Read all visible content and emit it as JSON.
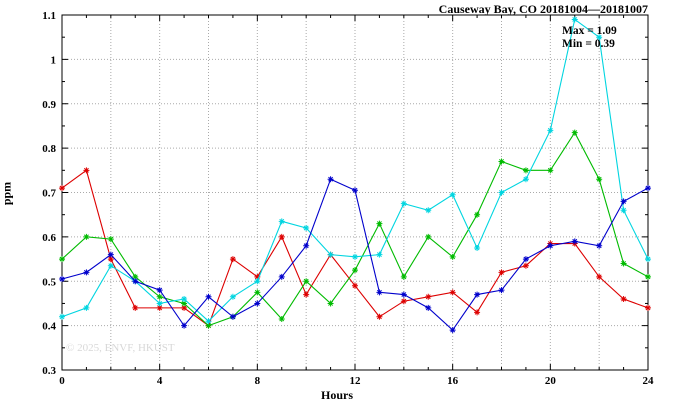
{
  "title": "Causeway Bay, CO 20181004—20181007",
  "annotation": {
    "max_label": "Max = 1.09",
    "min_label": "Min = 0.39"
  },
  "watermark": "© 2025, ENVF, HKUST",
  "axes": {
    "xlabel": "Hours",
    "ylabel": "ppm"
  },
  "colors": {
    "border": "#000000",
    "grid": "#aaaaaa",
    "background": "#ffffff"
  },
  "chart_data": {
    "type": "line",
    "title": "Causeway Bay, CO 20181004—20181007",
    "xlabel": "Hours",
    "ylabel": "ppm",
    "xlim": [
      0,
      24
    ],
    "ylim": [
      0.3,
      1.1
    ],
    "xticks": [
      0,
      4,
      8,
      12,
      16,
      20,
      24
    ],
    "yticks": [
      0.3,
      0.4,
      0.5,
      0.6,
      0.7,
      0.8,
      0.9,
      1.0,
      1.1
    ],
    "ytick_labels": [
      "0.3",
      "0.4",
      "0.5",
      "0.6",
      "0.7",
      "0.8",
      "0.9",
      "1",
      "1.1"
    ],
    "grid": {
      "x_interval": 2,
      "y_interval": 0.1,
      "style": "dotted"
    },
    "legend_position": "none",
    "marker": "asterisk",
    "max": 1.09,
    "min": 0.39,
    "x": [
      0,
      1,
      2,
      3,
      4,
      5,
      6,
      7,
      8,
      9,
      10,
      11,
      12,
      13,
      14,
      15,
      16,
      17,
      18,
      19,
      20,
      21,
      22,
      23,
      24
    ],
    "series": [
      {
        "name": "series-red",
        "color": "#dd0000",
        "values": [
          0.71,
          0.75,
          0.55,
          0.44,
          0.44,
          0.44,
          0.4,
          0.55,
          0.51,
          0.6,
          0.47,
          0.56,
          0.49,
          0.42,
          0.455,
          0.465,
          0.475,
          0.43,
          0.52,
          0.535,
          0.585,
          0.585,
          0.51,
          0.46,
          0.44
        ]
      },
      {
        "name": "series-green",
        "color": "#00bb00",
        "values": [
          0.55,
          0.6,
          0.595,
          0.51,
          0.465,
          0.45,
          0.4,
          0.42,
          0.475,
          0.415,
          0.5,
          0.45,
          0.525,
          0.63,
          0.51,
          0.6,
          0.555,
          0.65,
          0.77,
          0.75,
          0.75,
          0.835,
          0.73,
          0.54,
          0.51
        ]
      },
      {
        "name": "series-cyan",
        "color": "#00d5e0",
        "values": [
          0.42,
          0.44,
          0.535,
          0.5,
          0.45,
          0.46,
          0.41,
          0.465,
          0.5,
          0.635,
          0.62,
          0.56,
          0.555,
          0.56,
          0.675,
          0.66,
          0.695,
          0.575,
          0.7,
          0.73,
          0.84,
          1.09,
          1.05,
          0.66,
          0.55
        ]
      },
      {
        "name": "series-blue",
        "color": "#0000cc",
        "values": [
          0.505,
          0.52,
          0.56,
          0.5,
          0.48,
          0.4,
          0.465,
          0.42,
          0.45,
          0.51,
          0.58,
          0.73,
          0.705,
          0.475,
          0.47,
          0.44,
          0.39,
          0.47,
          0.48,
          0.55,
          0.58,
          0.59,
          0.58,
          0.68,
          0.71
        ]
      }
    ]
  }
}
